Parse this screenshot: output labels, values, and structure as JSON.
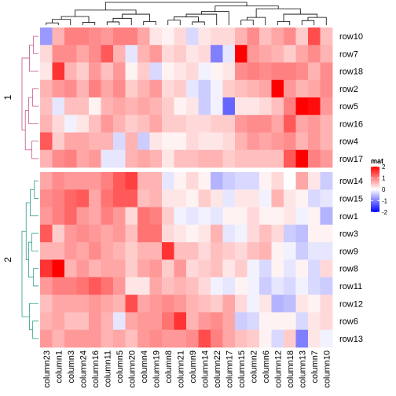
{
  "chart_data": {
    "type": "heatmap",
    "rows": [
      "row10",
      "row7",
      "row18",
      "row2",
      "row5",
      "row16",
      "row4",
      "row17",
      "row14",
      "row15",
      "row1",
      "row3",
      "row9",
      "row8",
      "row11",
      "row12",
      "row6",
      "row13"
    ],
    "columns": [
      "column23",
      "column1",
      "column3",
      "column24",
      "column16",
      "column11",
      "column5",
      "column20",
      "column4",
      "column19",
      "column8",
      "column21",
      "column9",
      "column14",
      "column22",
      "column17",
      "column15",
      "column2",
      "column6",
      "column12",
      "column18",
      "column13",
      "column7",
      "column10"
    ],
    "row_splits": [
      {
        "label": "1",
        "rows": [
          "row10",
          "row7",
          "row18",
          "row2",
          "row5",
          "row16",
          "row4",
          "row17"
        ],
        "color": "#C0548C"
      },
      {
        "label": "2",
        "rows": [
          "row14",
          "row15",
          "row1",
          "row3",
          "row9",
          "row8",
          "row11",
          "row12",
          "row6",
          "row13"
        ],
        "color": "#2E9E8E"
      }
    ],
    "values": [
      [
        -0.8,
        0.6,
        1.0,
        1.0,
        0.9,
        0.8,
        1.0,
        1.0,
        0.7,
        0.2,
        0.1,
        0.3,
        -0.3,
        0.2,
        0.3,
        0.3,
        0.6,
        0.9,
        0.5,
        0.7,
        0.9,
        0.4,
        1.4,
        0.5
      ],
      [
        0.3,
        0.9,
        0.9,
        0.7,
        0.9,
        1.3,
        0.6,
        -0.2,
        0.6,
        0.8,
        0.3,
        0.4,
        0.2,
        0.3,
        -1.0,
        -0.2,
        2.0,
        0.8,
        0.7,
        0.6,
        0.4,
        0.7,
        0.9,
        0.6
      ],
      [
        0.2,
        1.6,
        0.6,
        0.4,
        0.8,
        0.5,
        0.8,
        0.1,
        0.4,
        -0.3,
        0.1,
        0.2,
        0.3,
        -0.1,
        0.1,
        0.2,
        0.9,
        1.0,
        0.9,
        1.0,
        1.0,
        0.9,
        0.6,
        0.9
      ],
      [
        0.6,
        0.8,
        0.9,
        0.6,
        1.0,
        0.7,
        0.9,
        0.4,
        0.6,
        0.8,
        0.3,
        0.4,
        -0.2,
        -0.4,
        -0.1,
        0.4,
        0.5,
        0.6,
        0.7,
        2.0,
        0.8,
        0.6,
        0.7,
        0.9
      ],
      [
        0.5,
        -0.2,
        0.5,
        0.5,
        0.1,
        0.6,
        0.7,
        0.6,
        0.7,
        0.6,
        0.4,
        0.1,
        0.2,
        -0.4,
        -0.1,
        -1.2,
        0.2,
        0.2,
        0.3,
        0.5,
        1.0,
        2.0,
        1.9,
        0.8
      ],
      [
        0.6,
        0.3,
        -0.1,
        0.2,
        0.5,
        0.8,
        0.6,
        0.4,
        0.5,
        0.7,
        0.4,
        0.4,
        0.3,
        0.3,
        0.4,
        0.4,
        0.8,
        0.9,
        0.9,
        0.7,
        1.3,
        0.7,
        0.8,
        0.6
      ],
      [
        1.3,
        0.4,
        0.7,
        0.7,
        0.6,
        0.6,
        -0.3,
        0.6,
        -0.4,
        0.2,
        0.1,
        0.1,
        0.3,
        0.2,
        0.2,
        0.3,
        0.6,
        0.8,
        0.7,
        0.8,
        0.9,
        0.6,
        0.8,
        0.6
      ],
      [
        0.6,
        0.9,
        1.0,
        0.7,
        0.8,
        -0.2,
        -0.2,
        0.6,
        0.7,
        0.6,
        0.2,
        0.5,
        0.5,
        0.6,
        0.6,
        0.4,
        0.5,
        0.5,
        0.5,
        0.5,
        1.3,
        2.0,
        1.0,
        0.8
      ],
      [
        0.7,
        0.9,
        0.8,
        0.8,
        0.8,
        1.0,
        1.3,
        1.5,
        0.6,
        0.6,
        -0.2,
        0.1,
        0.3,
        0.1,
        -0.6,
        -0.4,
        -0.3,
        -0.3,
        0.1,
        0.3,
        0.0,
        0.7,
        0.2,
        -0.4
      ],
      [
        0.9,
        1.0,
        1.2,
        1.3,
        0.7,
        1.1,
        1.3,
        1.3,
        0.5,
        0.6,
        0.2,
        0.2,
        0.1,
        0.4,
        0.2,
        -0.2,
        0.2,
        0.2,
        -0.1,
        0.6,
        0.2,
        0.1,
        -0.3,
        -0.2
      ],
      [
        0.8,
        1.0,
        1.2,
        0.8,
        0.7,
        1.0,
        0.8,
        0.3,
        1.1,
        1.0,
        0.4,
        -0.1,
        -0.2,
        -0.1,
        -0.2,
        0.1,
        0.1,
        0.3,
        0.1,
        0.1,
        0.2,
        -0.1,
        0.1,
        -0.6
      ],
      [
        1.3,
        0.4,
        0.8,
        0.9,
        0.8,
        0.7,
        0.8,
        0.5,
        1.1,
        1.1,
        0.3,
        0.2,
        0.1,
        0.2,
        0.6,
        -0.2,
        -0.1,
        0.3,
        0.5,
        0.3,
        -0.4,
        -0.5,
        0.1,
        0.1
      ],
      [
        0.6,
        0.6,
        0.8,
        0.7,
        0.9,
        0.7,
        0.6,
        0.4,
        0.6,
        0.6,
        1.6,
        0.5,
        0.5,
        0.3,
        0.5,
        0.4,
        0.3,
        0.5,
        0.6,
        0.1,
        -0.1,
        -0.4,
        -0.2,
        -0.2
      ],
      [
        1.6,
        2.0,
        0.6,
        0.8,
        0.6,
        0.7,
        0.7,
        0.4,
        0.7,
        0.8,
        0.4,
        0.8,
        0.3,
        0.4,
        0.5,
        0.2,
        0.4,
        -0.1,
        -0.3,
        0.1,
        -0.2,
        0.1,
        -0.3,
        0.3
      ],
      [
        0.8,
        1.0,
        1.0,
        1.1,
        1.3,
        1.1,
        0.8,
        0.2,
        0.2,
        0.7,
        0.5,
        0.6,
        0.5,
        0.3,
        -0.1,
        -0.2,
        0.1,
        -0.1,
        -0.4,
        -0.2,
        -0.3,
        -0.1,
        -0.3,
        -0.4
      ],
      [
        0.5,
        0.7,
        0.7,
        0.7,
        0.8,
        0.7,
        0.6,
        1.4,
        0.7,
        0.8,
        0.9,
        0.8,
        0.6,
        0.5,
        0.4,
        0.7,
        0.3,
        -0.1,
        0.2,
        -0.6,
        -0.5,
        0.2,
        0.1,
        0.3
      ],
      [
        0.6,
        0.7,
        0.5,
        0.5,
        0.8,
        0.6,
        -0.2,
        0.7,
        0.8,
        0.8,
        1.1,
        1.6,
        0.6,
        0.8,
        0.9,
        0.7,
        -0.4,
        -0.3,
        0.1,
        0.1,
        0.1,
        -0.3,
        0.2,
        0.3
      ],
      [
        0.8,
        0.6,
        0.8,
        0.8,
        0.8,
        0.6,
        0.7,
        0.5,
        0.8,
        0.9,
        0.8,
        0.8,
        0.9,
        1.4,
        1.0,
        0.7,
        0.5,
        0.4,
        0.1,
        -0.3,
        0.4,
        -1.0,
        0.2,
        -0.1
      ]
    ],
    "col_dendrogram": [
      {
        "left": 0,
        "right": 1,
        "height": 0.1
      },
      {
        "left": 3,
        "right": 4,
        "height": 0.12
      },
      {
        "left": 24,
        "right": 2,
        "height": 0.25
      },
      {
        "left": 26,
        "right": 25,
        "height": 0.38
      },
      {
        "left": 5,
        "right": 6,
        "height": 0.14
      },
      {
        "left": 28,
        "right": 7,
        "height": 0.3
      },
      {
        "left": 8,
        "right": 9,
        "height": 0.16
      },
      {
        "left": 29,
        "right": 30,
        "height": 0.48
      },
      {
        "left": 27,
        "right": 31,
        "height": 0.66
      },
      {
        "left": 10,
        "right": 11,
        "height": 0.22
      },
      {
        "left": 12,
        "right": 13,
        "height": 0.14
      },
      {
        "left": 33,
        "right": 34,
        "height": 0.36
      },
      {
        "left": 35,
        "right": 14,
        "height": 0.48
      },
      {
        "left": 36,
        "right": 15,
        "height": 0.6
      },
      {
        "left": 16,
        "right": 17,
        "height": 0.22
      },
      {
        "left": 38,
        "right": 18,
        "height": 0.34
      },
      {
        "left": 19,
        "right": 20,
        "height": 0.16
      },
      {
        "left": 21,
        "right": 22,
        "height": 0.2
      },
      {
        "left": 41,
        "right": 23,
        "height": 0.34
      },
      {
        "left": 40,
        "right": 42,
        "height": 0.48
      },
      {
        "left": 39,
        "right": 43,
        "height": 0.72
      },
      {
        "left": 37,
        "right": 44,
        "height": 0.84
      },
      {
        "left": 32,
        "right": 45,
        "height": 1.0
      }
    ],
    "row_dendrograms": [
      [
        {
          "left": 0,
          "right": 1,
          "height": 0.3
        },
        {
          "left": 8,
          "right": 2,
          "height": 0.55
        },
        {
          "left": 3,
          "right": 4,
          "height": 0.35
        },
        {
          "left": 10,
          "right": 5,
          "height": 0.6
        },
        {
          "left": 6,
          "right": 7,
          "height": 0.4
        },
        {
          "left": 11,
          "right": 12,
          "height": 0.8
        },
        {
          "left": 9,
          "right": 13,
          "height": 1.0
        }
      ],
      [
        {
          "left": 0,
          "right": 1,
          "height": 0.25
        },
        {
          "left": 10,
          "right": 2,
          "height": 0.5
        },
        {
          "left": 3,
          "right": 4,
          "height": 0.4
        },
        {
          "left": 5,
          "right": 6,
          "height": 0.3
        },
        {
          "left": 12,
          "right": 13,
          "height": 0.6
        },
        {
          "left": 11,
          "right": 14,
          "height": 0.75
        },
        {
          "left": 8,
          "right": 9,
          "height": 0.35
        },
        {
          "left": 7,
          "right": 16,
          "height": 0.55
        },
        {
          "left": 15,
          "right": 17,
          "height": 1.0
        }
      ]
    ],
    "legend": {
      "title": "mat",
      "breaks": [
        2,
        1,
        0,
        -1,
        -2
      ],
      "colors": {
        "low": "#0000FF",
        "mid": "#FFFFFF",
        "high": "#FF0000"
      },
      "range": [
        -2,
        2
      ]
    }
  }
}
